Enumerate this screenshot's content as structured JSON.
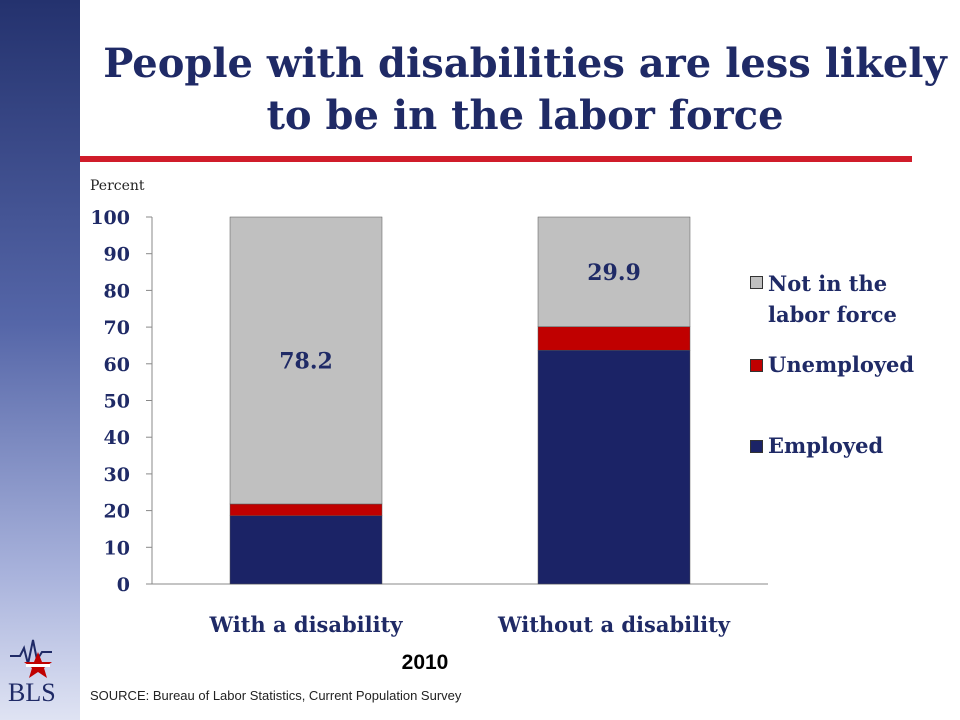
{
  "title": "People with disabilities are less likely to be in the labor force",
  "year": "2010",
  "source": "SOURCE:  Bureau of Labor Statistics, Current Population Survey",
  "logo_text": "BLS",
  "colors": {
    "employed": "#1b2366",
    "unemployed": "#c00000",
    "not_in_lf": "#c0c0c0",
    "title": "#1f2a66",
    "rule": "#d01c2a"
  },
  "chart_data": {
    "type": "bar",
    "stacked": true,
    "ylabel": "Percent",
    "ylim": [
      0,
      100
    ],
    "yticks": [
      0,
      10,
      20,
      30,
      40,
      50,
      60,
      70,
      80,
      90,
      100
    ],
    "categories": [
      "With a disability",
      "Without a disability"
    ],
    "series": [
      {
        "name": "Employed",
        "key": "employed",
        "values": [
          18.6,
          63.7
        ]
      },
      {
        "name": "Unemployed",
        "key": "unemployed",
        "values": [
          3.2,
          6.4
        ]
      },
      {
        "name": "Not in the labor force",
        "key": "not_in_lf",
        "values": [
          78.2,
          29.9
        ]
      }
    ],
    "data_labels": [
      {
        "category": "With a disability",
        "series": "Not in the labor force",
        "text": "78.2"
      },
      {
        "category": "Without a disability",
        "series": "Not in the labor force",
        "text": "29.9"
      }
    ],
    "legend": {
      "placement": "right",
      "items": [
        {
          "label": "Not in the labor force",
          "key": "not_in_lf"
        },
        {
          "label": "Unemployed",
          "key": "unemployed"
        },
        {
          "label": "Employed",
          "key": "employed"
        }
      ]
    }
  }
}
